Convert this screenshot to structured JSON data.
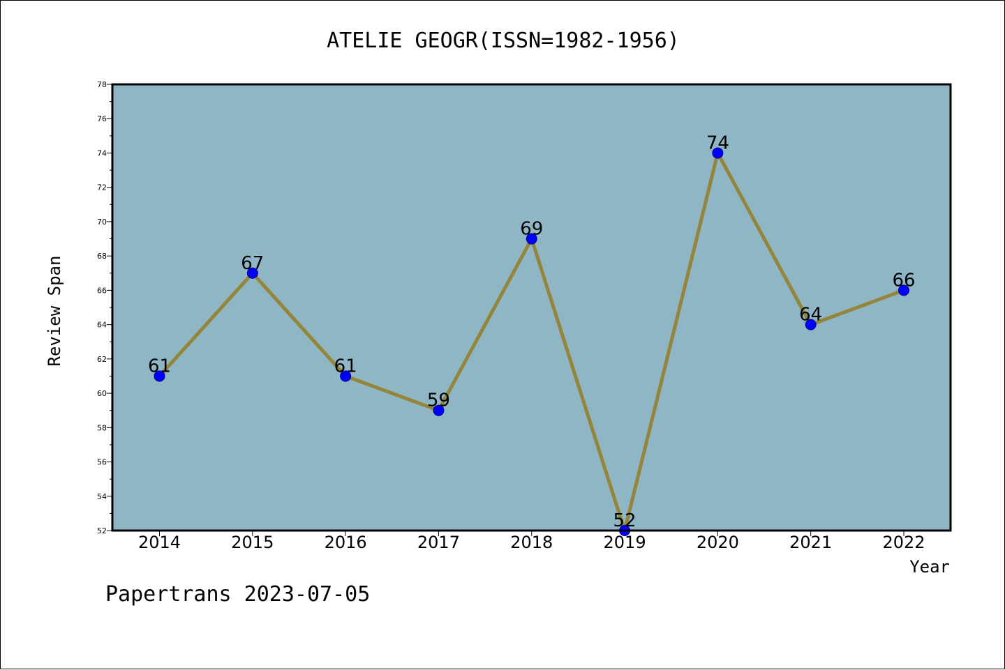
{
  "chart_data": {
    "type": "line",
    "title": "ATELIE GEOGR(ISSN=1982-1956)",
    "xlabel": "Year",
    "ylabel": "Review Span",
    "categories": [
      "2014",
      "2015",
      "2016",
      "2017",
      "2018",
      "2019",
      "2020",
      "2021",
      "2022"
    ],
    "series": [
      {
        "values": [
          61,
          67,
          61,
          59,
          69,
          52,
          74,
          64,
          66
        ]
      }
    ],
    "ylim": [
      52,
      78
    ],
    "yticks": [
      52,
      54,
      56,
      58,
      60,
      62,
      64,
      66,
      68,
      70,
      72,
      74,
      76,
      78
    ],
    "grid": false,
    "legend": "none",
    "colors": {
      "plot_background": "#8fb6c4",
      "line": "#94853a",
      "marker": "#0000ff",
      "marker_edge": "#00008b"
    }
  },
  "footer": {
    "text": "Papertrans 2023-07-05"
  }
}
